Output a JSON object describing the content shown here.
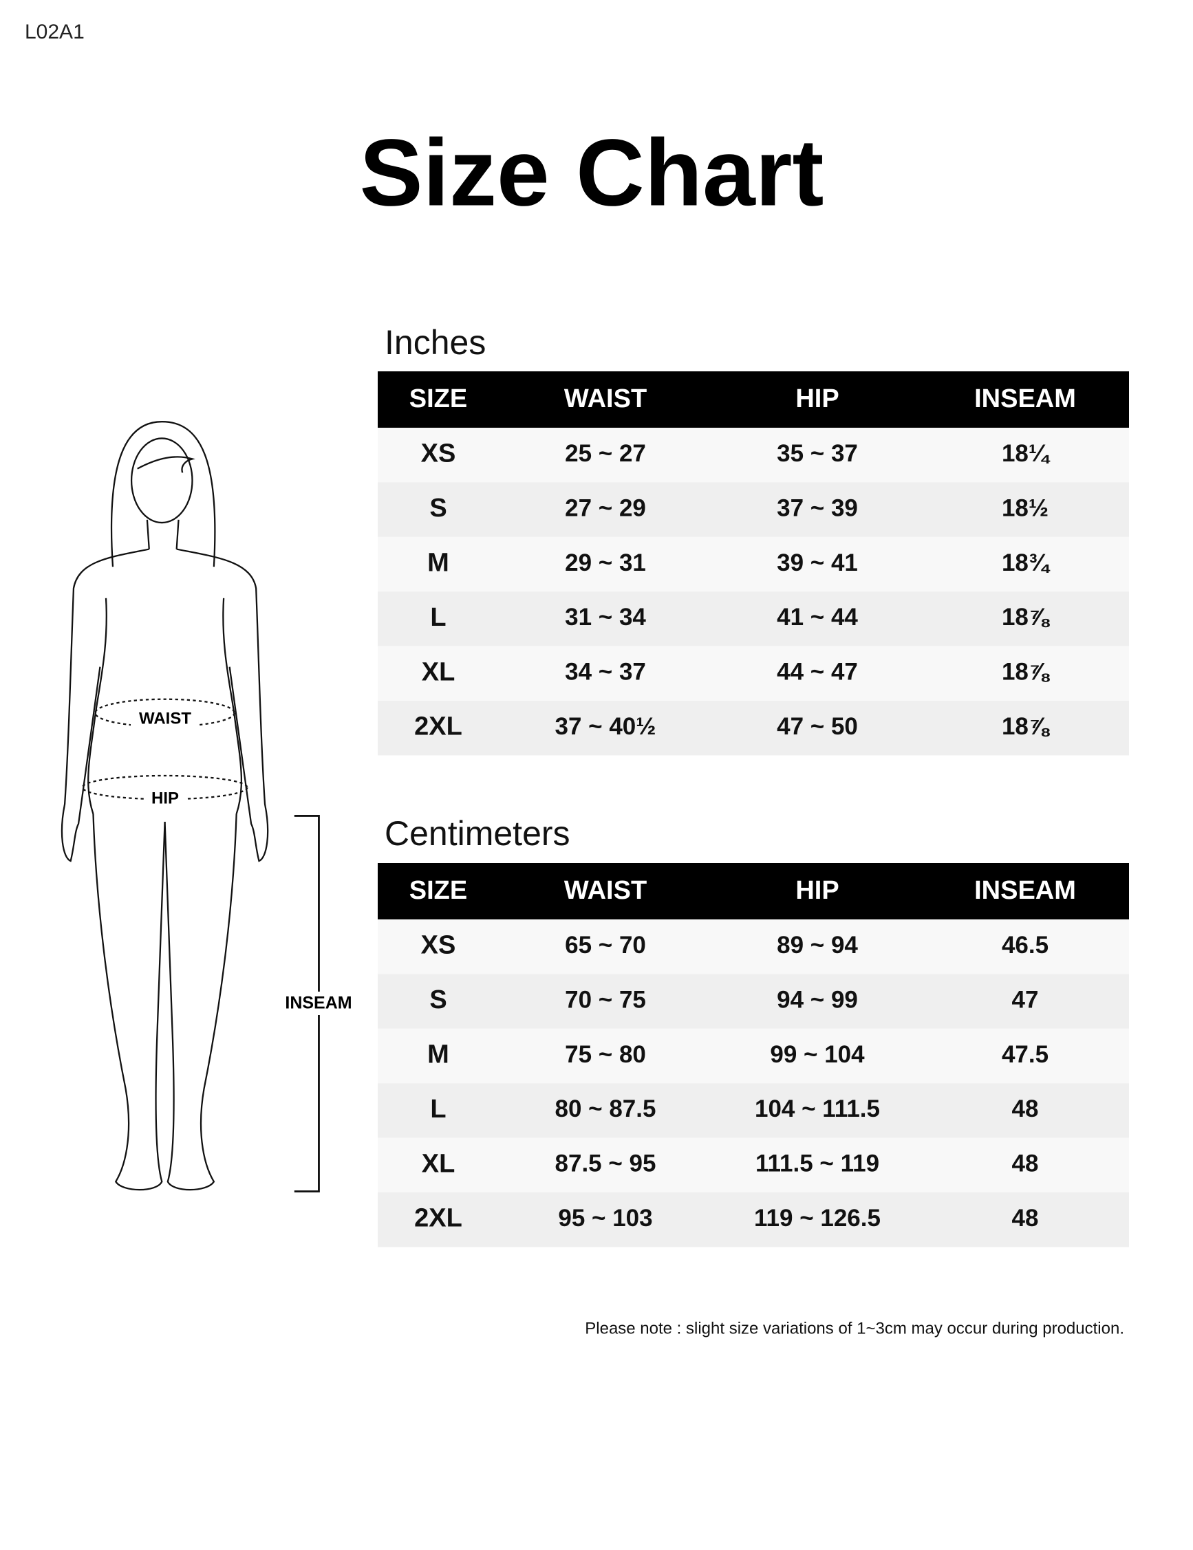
{
  "header": {
    "code": "L02A1",
    "title": "Size Chart"
  },
  "figure": {
    "waist_label": "WAIST",
    "hip_label": "HIP",
    "inseam_label": "INSEAM"
  },
  "tables": [
    {
      "title": "Inches",
      "columns": [
        "SIZE",
        "WAIST",
        "HIP",
        "INSEAM"
      ],
      "rows": [
        [
          "XS",
          "25 ~ 27",
          "35 ~ 37",
          "18¼"
        ],
        [
          "S",
          "27 ~ 29",
          "37 ~ 39",
          "18½"
        ],
        [
          "M",
          "29 ~ 31",
          "39 ~ 41",
          "18¾"
        ],
        [
          "L",
          "31 ~ 34",
          "41 ~ 44",
          "18⅞"
        ],
        [
          "XL",
          "34 ~ 37",
          "44 ~ 47",
          "18⅞"
        ],
        [
          "2XL",
          "37 ~ 40½",
          "47 ~ 50",
          "18⅞"
        ]
      ]
    },
    {
      "title": "Centimeters",
      "columns": [
        "SIZE",
        "WAIST",
        "HIP",
        "INSEAM"
      ],
      "rows": [
        [
          "XS",
          "65 ~ 70",
          "89 ~ 94",
          "46.5"
        ],
        [
          "S",
          "70 ~ 75",
          "94 ~ 99",
          "47"
        ],
        [
          "M",
          "75 ~ 80",
          "99 ~ 104",
          "47.5"
        ],
        [
          "L",
          "80 ~ 87.5",
          "104 ~ 111.5",
          "48"
        ],
        [
          "XL",
          "87.5 ~ 95",
          "111.5 ~ 119",
          "48"
        ],
        [
          "2XL",
          "95 ~ 103",
          "119 ~ 126.5",
          "48"
        ]
      ]
    }
  ],
  "note": "Please note : slight size variations of 1~3cm may occur during production."
}
